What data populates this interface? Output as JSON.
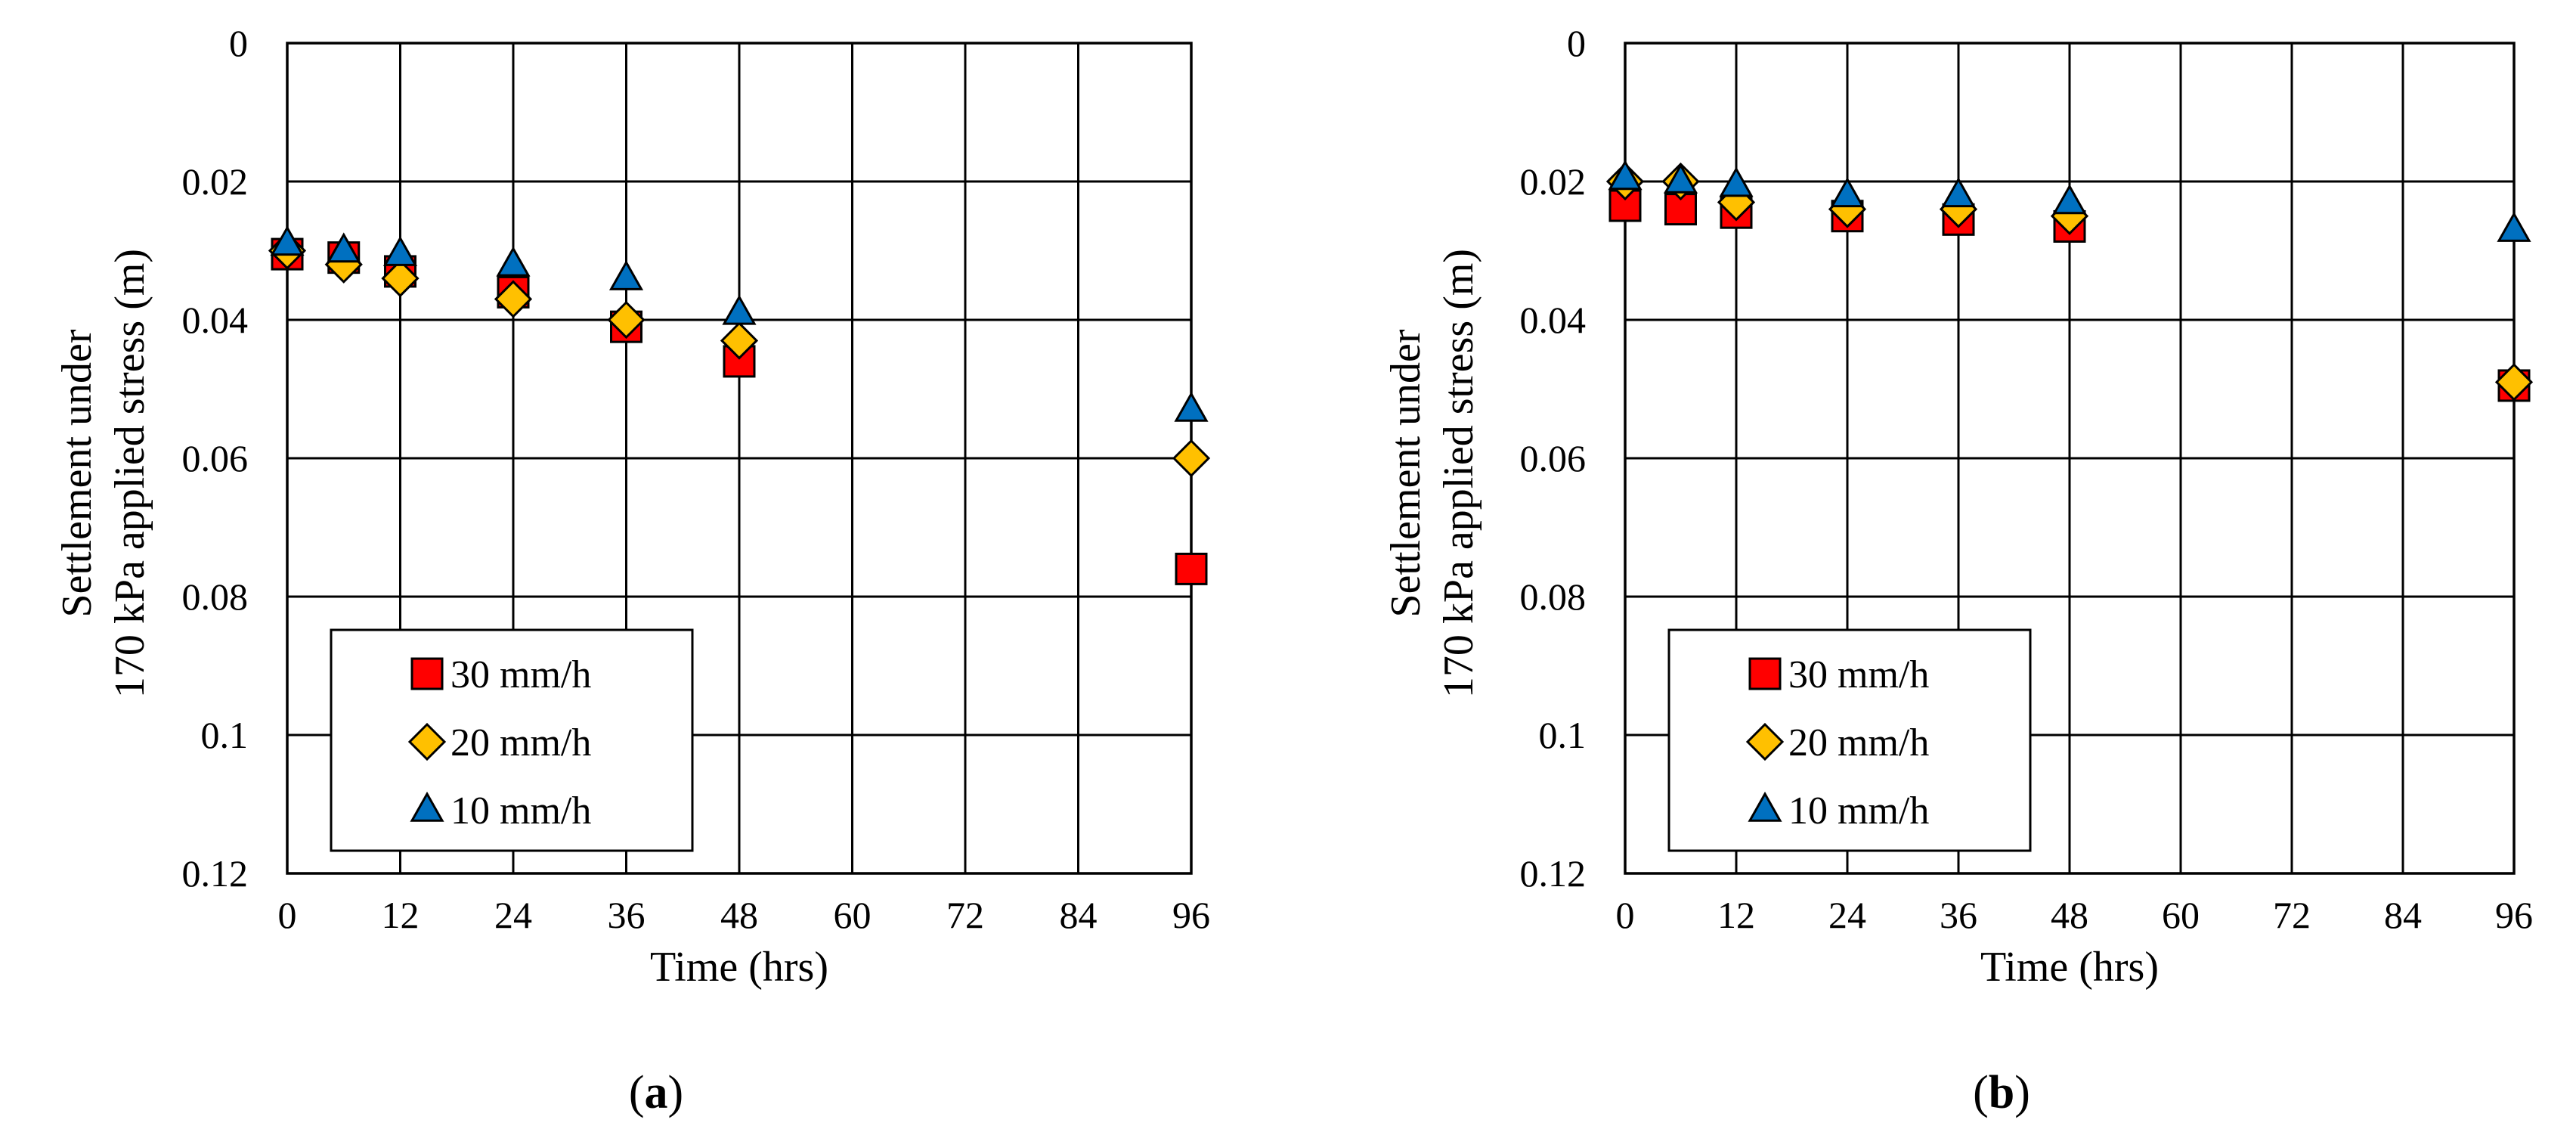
{
  "chart_data": [
    {
      "type": "scatter",
      "panel_label": "a",
      "xlabel": "Time  (hrs)",
      "ylabel_line1": "Settlement  under",
      "ylabel_line2": "170 kPa applied  stress  (m)",
      "xlim": [
        0,
        96
      ],
      "ylim": [
        0,
        0.12
      ],
      "y_inverted": true,
      "x_ticks": [
        "0",
        "12",
        "24",
        "36",
        "48",
        "60",
        "72",
        "84",
        "96"
      ],
      "y_ticks": [
        "0",
        "0.02",
        "0.04",
        "0.06",
        "0.08",
        "0.1",
        "0.12"
      ],
      "grid": true,
      "legend_position": "bottom-left",
      "series": [
        {
          "name": "30 mm/h",
          "marker": "square",
          "color": "#ff0000",
          "x": [
            0,
            6,
            12,
            24,
            36,
            48,
            96
          ],
          "y": [
            0.0305,
            0.031,
            0.033,
            0.036,
            0.041,
            0.046,
            0.076
          ]
        },
        {
          "name": "20 mm/h",
          "marker": "diamond",
          "color": "#ffc000",
          "x": [
            0,
            6,
            12,
            24,
            36,
            48,
            96
          ],
          "y": [
            0.03,
            0.032,
            0.034,
            0.037,
            0.04,
            0.043,
            0.06
          ]
        },
        {
          "name": "10 mm/h",
          "marker": "triangle",
          "color": "#0070c0",
          "x": [
            0,
            6,
            12,
            24,
            36,
            48,
            96
          ],
          "y": [
            0.029,
            0.03,
            0.0305,
            0.032,
            0.034,
            0.039,
            0.053
          ]
        }
      ]
    },
    {
      "type": "scatter",
      "panel_label": "b",
      "xlabel": "Time  (hrs)",
      "ylabel_line1": "Settlement  under",
      "ylabel_line2": "170 kPa applied  stress  (m)",
      "xlim": [
        0,
        96
      ],
      "ylim": [
        0,
        0.12
      ],
      "y_inverted": true,
      "x_ticks": [
        "0",
        "12",
        "24",
        "36",
        "48",
        "60",
        "72",
        "84",
        "96"
      ],
      "y_ticks": [
        "0",
        "0.02",
        "0.04",
        "0.06",
        "0.08",
        "0.1",
        "0.12"
      ],
      "grid": true,
      "legend_position": "bottom-left",
      "series": [
        {
          "name": "30 mm/h",
          "marker": "square",
          "color": "#ff0000",
          "x": [
            0,
            6,
            12,
            24,
            36,
            48,
            96
          ],
          "y": [
            0.0235,
            0.024,
            0.0245,
            0.025,
            0.0255,
            0.0265,
            0.0495
          ]
        },
        {
          "name": "20 mm/h",
          "marker": "diamond",
          "color": "#ffc000",
          "x": [
            0,
            6,
            12,
            24,
            36,
            48,
            96
          ],
          "y": [
            0.02,
            0.02,
            0.023,
            0.024,
            0.024,
            0.025,
            0.049
          ]
        },
        {
          "name": "10 mm/h",
          "marker": "triangle",
          "color": "#0070c0",
          "x": [
            0,
            6,
            12,
            24,
            36,
            48,
            96
          ],
          "y": [
            0.0195,
            0.02,
            0.0205,
            0.022,
            0.022,
            0.023,
            0.027
          ]
        }
      ]
    }
  ]
}
